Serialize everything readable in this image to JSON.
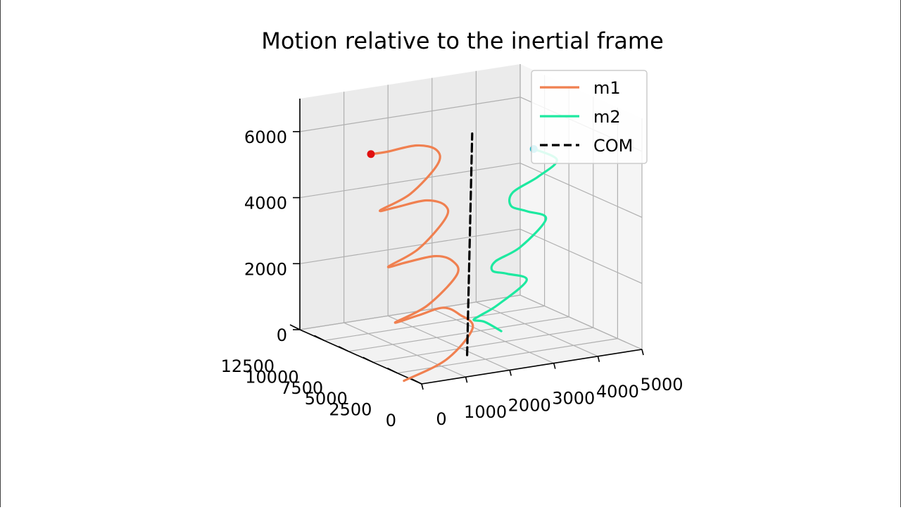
{
  "chart_data": {
    "type": "line",
    "projection": "3d",
    "title": "Motion relative to the inertial frame",
    "legend": {
      "placement": "top-right",
      "entries": [
        {
          "label": "m1",
          "color": "#f08050",
          "style": "solid"
        },
        {
          "label": "m2",
          "color": "#1de9a0",
          "style": "solid"
        },
        {
          "label": "COM",
          "color": "#000000",
          "style": "dashed"
        }
      ]
    },
    "axes": {
      "x": {
        "range": [
          0,
          5000
        ],
        "ticks": [
          "0",
          "1000",
          "2000",
          "3000",
          "4000",
          "5000"
        ]
      },
      "y": {
        "range": [
          0,
          12500
        ],
        "ticks": [
          "0",
          "2500",
          "5000",
          "7500",
          "10000",
          "12500"
        ]
      },
      "z": {
        "range": [
          0,
          7000
        ],
        "ticks": [
          "0",
          "2000",
          "4000",
          "6000"
        ]
      },
      "grid": true
    },
    "series": [
      {
        "name": "m1",
        "color": "#f08050",
        "x": [
          -180,
          650,
          1400,
          1300,
          1040,
          510,
          -180,
          460,
          1240,
          1320,
          1010,
          400,
          -180,
          430,
          1180,
          1350,
          1010,
          370,
          -190,
          430,
          1180,
          1330,
          990,
          340,
          -200
        ],
        "y": [
          1000,
          400,
          1100,
          2000,
          2500,
          2700,
          1900,
          1500,
          2000,
          2800,
          3200,
          3400,
          2600,
          2300,
          2900,
          3700,
          4100,
          4200,
          3400,
          3100,
          3700,
          4500,
          5000,
          5100,
          4300
        ],
        "z": [
          0,
          550,
          1250,
          1570,
          1760,
          1610,
          1650,
          2080,
          2780,
          3080,
          3240,
          3150,
          3250,
          3690,
          4380,
          4640,
          4810,
          4730,
          4850,
          5260,
          5920,
          6220,
          6360,
          6290,
          6440
        ]
      },
      {
        "name": "m2",
        "color": "#1de9a0",
        "x": [
          3200,
          2600,
          2200,
          2280,
          2700,
          3180,
          2600,
          2230,
          2250,
          2750,
          3130,
          2580,
          2240,
          2290,
          2780,
          3060,
          2500
        ],
        "y": [
          6300,
          5300,
          4600,
          4300,
          4400,
          3600,
          3000,
          2800,
          2600,
          2300,
          1400,
          850,
          950,
          1000,
          600,
          -50,
          -200
        ],
        "z": [
          100,
          640,
          870,
          1030,
          1250,
          2000,
          2400,
          2590,
          2900,
          3270,
          4160,
          4580,
          4800,
          5190,
          5620,
          6150,
          6620
        ]
      },
      {
        "name": "COM",
        "color": "#000000",
        "x": [
          1850,
          1700
        ],
        "y": [
          3700,
          2500
        ],
        "z": [
          0,
          6900
        ]
      }
    ],
    "end_markers": [
      {
        "series": "m1",
        "color": "#e01010",
        "x": -200,
        "y": 4300,
        "z": 6440
      },
      {
        "series": "m2",
        "color": "#17becf",
        "x": 2500,
        "y": -200,
        "z": 6620
      }
    ]
  }
}
